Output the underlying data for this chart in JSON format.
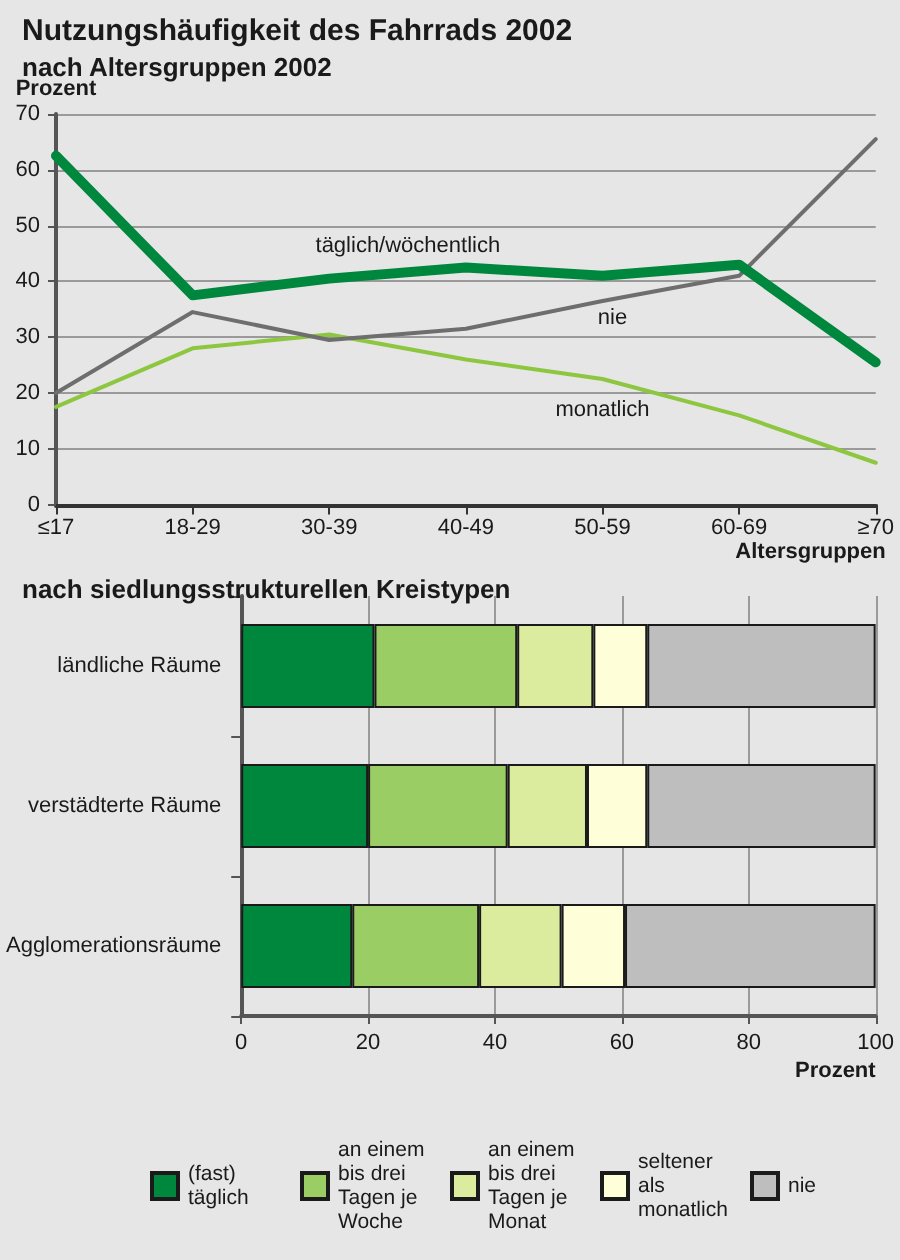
{
  "chart_data": [
    {
      "type": "line",
      "title": "Nutzungshäufigkeit des Fahrrads 2002",
      "subtitle": "nach Altersgruppen 2002",
      "ylabel": "Prozent",
      "xlabel": "Altersgruppen",
      "categories": [
        "≤17",
        "18-29",
        "30-39",
        "40-49",
        "50-59",
        "60-69",
        "≥70"
      ],
      "series": [
        {
          "name": "täglich/wöchentlich",
          "color": "#00873e",
          "values": [
            62.5,
            37.5,
            40.5,
            42.5,
            41,
            43,
            25.5
          ]
        },
        {
          "name": "nie",
          "color": "#6e6e6e",
          "values": [
            20,
            34.5,
            29.5,
            31.5,
            36.5,
            41,
            65.5
          ]
        },
        {
          "name": "monatlich",
          "color": "#8dc63f",
          "values": [
            17.5,
            28,
            30.5,
            26,
            22.5,
            16,
            7.5
          ]
        }
      ],
      "ylim": [
        0,
        70
      ],
      "yticks": [
        0,
        10,
        20,
        30,
        40,
        50,
        60,
        70
      ],
      "grid": "y",
      "marker": "none",
      "line_style": "solid"
    },
    {
      "type": "bar",
      "title": "nach siedlungsstrukturellen Kreistypen",
      "xlabel": "Prozent",
      "orientation": "horizontal",
      "stacked": true,
      "categories": [
        "ländliche Räume",
        "verstädterte Räume",
        "Agglomerationsräume"
      ],
      "series": [
        {
          "name": "(fast) täglich",
          "color": "#00873e",
          "values": [
            21,
            20,
            17.5
          ]
        },
        {
          "name": "an einem bis drei Tagen je Woche",
          "color": "#9bcd65",
          "values": [
            22.5,
            22,
            20
          ]
        },
        {
          "name": "an einem bis drei Tagen je Monat",
          "color": "#dcec9f",
          "values": [
            12,
            12.5,
            13
          ]
        },
        {
          "name": "seltener als monatlich",
          "color": "#fefed8",
          "values": [
            8.5,
            9.5,
            10
          ]
        },
        {
          "name": "nie",
          "color": "#bebebe",
          "values": [
            36,
            36,
            39.5
          ]
        }
      ],
      "xlim": [
        0,
        100
      ],
      "xticks": [
        0,
        20,
        40,
        60,
        80,
        100
      ],
      "grid": "x",
      "legend": "bottom"
    }
  ]
}
